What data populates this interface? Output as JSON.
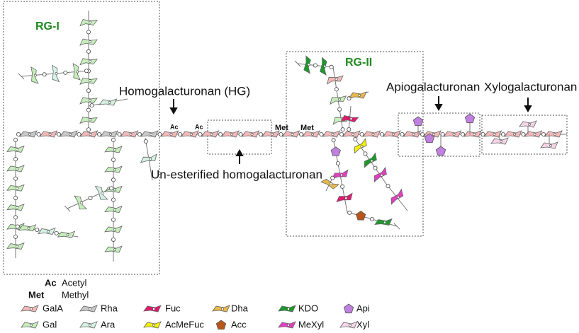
{
  "regions": [
    {
      "label": "RG-I"
    },
    {
      "label": "RG-II"
    }
  ],
  "annotations": [
    "Homogalacturonan (HG)",
    "Un-esterified homogalacturonan",
    "Apiogalacturonan",
    "Xylogalacturonan"
  ],
  "substituents": [
    "Ac",
    "Ac",
    "Met",
    "Met"
  ],
  "abbreviations": [
    {
      "abbr": "Ac",
      "name": "Acetyl"
    },
    {
      "abbr": "Met",
      "name": "Methyl"
    }
  ],
  "legend": [
    {
      "label": "GalA",
      "color": "#f4b8b8"
    },
    {
      "label": "Gal",
      "color": "#c6eebc"
    },
    {
      "label": "Rha",
      "color": "#c8c8c8"
    },
    {
      "label": "Ara",
      "color": "#d4f2e2"
    },
    {
      "label": "Fuc",
      "color": "#e0196e"
    },
    {
      "label": "AcMeFuc",
      "color": "#f2f000"
    },
    {
      "label": "Dha",
      "color": "#e8b84a"
    },
    {
      "label": "Acc",
      "color": "#b8561a"
    },
    {
      "label": "KDO",
      "color": "#1a9a2a"
    },
    {
      "label": "MeXyl",
      "color": "#e040c0"
    },
    {
      "label": "Api",
      "color": "#c080e0"
    },
    {
      "label": "Xyl",
      "color": "#f6d4e8"
    }
  ]
}
